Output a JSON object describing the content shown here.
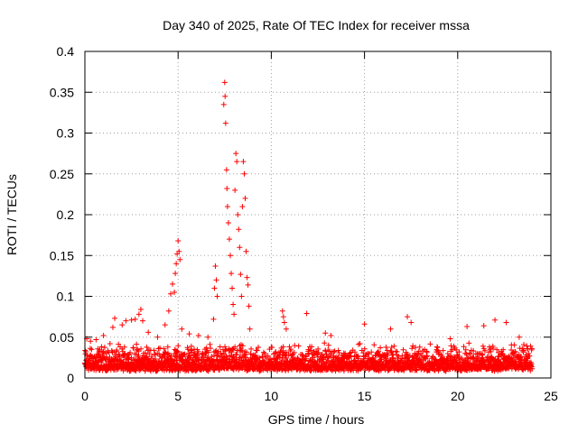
{
  "chart_data": {
    "type": "scatter",
    "title": "Day 340 of 2025, Rate Of TEC Index for receiver mssa",
    "xlabel": "GPS time / hours",
    "ylabel": "ROTI / TECUs",
    "xlim": [
      0,
      25
    ],
    "ylim": [
      0,
      0.4
    ],
    "xticks": [
      0,
      5,
      10,
      15,
      20,
      25
    ],
    "yticks": [
      0,
      0.05,
      0.1,
      0.15,
      0.2,
      0.25,
      0.3,
      0.35,
      0.4
    ],
    "xtick_labels": [
      "0",
      "5",
      "10",
      "15",
      "20",
      "25"
    ],
    "ytick_labels": [
      "0",
      "0.05",
      "0.1",
      "0.15",
      "0.2",
      "0.25",
      "0.3",
      "0.35",
      "0.4"
    ],
    "grid": true,
    "marker": "+",
    "series": [
      {
        "name": "ROTI",
        "color": "#ff0000",
        "baseline": {
          "x_range": [
            0,
            24
          ],
          "y_range": [
            0.008,
            0.04
          ]
        },
        "points": [
          [
            0.1,
            0.048
          ],
          [
            0.3,
            0.045
          ],
          [
            0.6,
            0.047
          ],
          [
            1.0,
            0.052
          ],
          [
            1.5,
            0.062
          ],
          [
            1.6,
            0.073
          ],
          [
            2.0,
            0.065
          ],
          [
            2.2,
            0.07
          ],
          [
            2.5,
            0.071
          ],
          [
            2.7,
            0.072
          ],
          [
            2.9,
            0.078
          ],
          [
            3.0,
            0.084
          ],
          [
            3.1,
            0.07
          ],
          [
            3.4,
            0.056
          ],
          [
            3.9,
            0.05
          ],
          [
            4.3,
            0.065
          ],
          [
            4.5,
            0.082
          ],
          [
            4.6,
            0.103
          ],
          [
            4.7,
            0.115
          ],
          [
            4.8,
            0.105
          ],
          [
            4.85,
            0.128
          ],
          [
            4.9,
            0.14
          ],
          [
            4.95,
            0.152
          ],
          [
            5.0,
            0.168
          ],
          [
            5.05,
            0.155
          ],
          [
            5.1,
            0.145
          ],
          [
            5.2,
            0.06
          ],
          [
            5.6,
            0.054
          ],
          [
            6.1,
            0.052
          ],
          [
            6.6,
            0.05
          ],
          [
            6.9,
            0.072
          ],
          [
            6.95,
            0.11
          ],
          [
            7.0,
            0.137
          ],
          [
            7.05,
            0.12
          ],
          [
            7.1,
            0.1
          ],
          [
            7.45,
            0.335
          ],
          [
            7.5,
            0.362
          ],
          [
            7.52,
            0.345
          ],
          [
            7.55,
            0.312
          ],
          [
            7.6,
            0.255
          ],
          [
            7.62,
            0.232
          ],
          [
            7.65,
            0.21
          ],
          [
            7.7,
            0.19
          ],
          [
            7.75,
            0.17
          ],
          [
            7.8,
            0.15
          ],
          [
            7.85,
            0.128
          ],
          [
            7.9,
            0.11
          ],
          [
            7.95,
            0.09
          ],
          [
            8.0,
            0.078
          ],
          [
            8.05,
            0.23
          ],
          [
            8.1,
            0.275
          ],
          [
            8.15,
            0.265
          ],
          [
            8.2,
            0.2
          ],
          [
            8.25,
            0.182
          ],
          [
            8.3,
            0.16
          ],
          [
            8.35,
            0.127
          ],
          [
            8.4,
            0.1
          ],
          [
            8.45,
            0.21
          ],
          [
            8.5,
            0.265
          ],
          [
            8.55,
            0.25
          ],
          [
            8.6,
            0.22
          ],
          [
            8.65,
            0.155
          ],
          [
            8.7,
            0.123
          ],
          [
            8.75,
            0.114
          ],
          [
            8.8,
            0.088
          ],
          [
            8.85,
            0.06
          ],
          [
            10.6,
            0.082
          ],
          [
            10.65,
            0.075
          ],
          [
            10.7,
            0.068
          ],
          [
            10.8,
            0.06
          ],
          [
            11.9,
            0.079
          ],
          [
            12.9,
            0.055
          ],
          [
            13.2,
            0.052
          ],
          [
            15.0,
            0.066
          ],
          [
            16.4,
            0.06
          ],
          [
            17.3,
            0.075
          ],
          [
            17.5,
            0.068
          ],
          [
            19.6,
            0.048
          ],
          [
            20.5,
            0.063
          ],
          [
            21.4,
            0.064
          ],
          [
            22.0,
            0.071
          ],
          [
            22.6,
            0.068
          ],
          [
            23.3,
            0.05
          ]
        ]
      }
    ]
  }
}
